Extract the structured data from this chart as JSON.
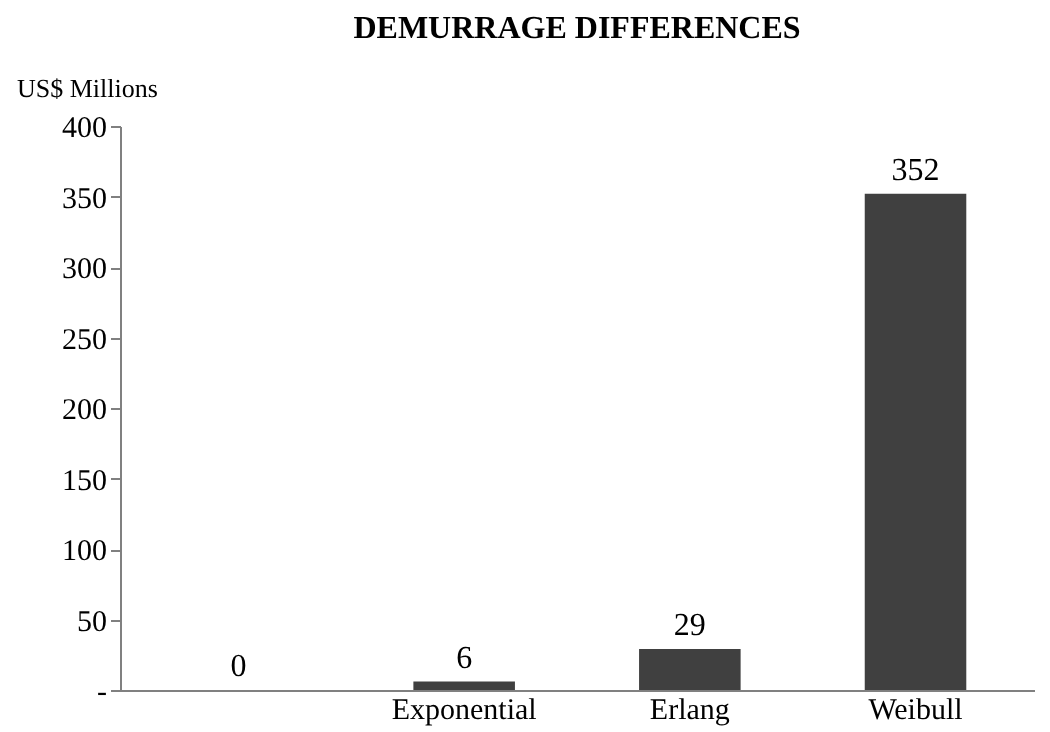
{
  "chart_data": {
    "type": "bar",
    "title": "DEMURRAGE DIFFERENCES",
    "ylabel": "US$ Millions",
    "categories": [
      null,
      "Exponential",
      "Erlang",
      "Weibull"
    ],
    "values": [
      0,
      6,
      29,
      352
    ],
    "color": "#404040",
    "ylim": [
      0,
      400
    ],
    "yticks": [
      {
        "value": 0,
        "label": "-"
      },
      50,
      100,
      150,
      200,
      250,
      300,
      350,
      400
    ],
    "grid": false,
    "data_labels": true
  }
}
